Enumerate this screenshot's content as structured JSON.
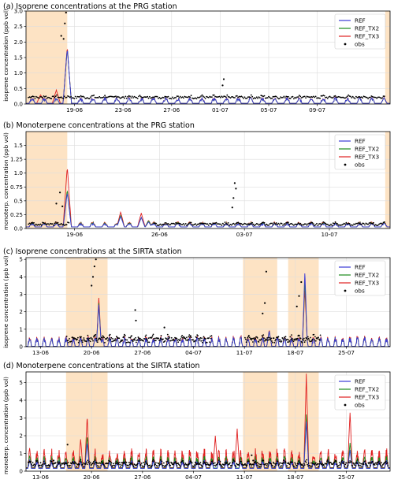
{
  "figure": {
    "legend_items": [
      "REF",
      "REF_TX2",
      "REF_TX3",
      "obs"
    ],
    "colors": {
      "REF": "#3b3bd6",
      "REF_TX2": "#1a8a1a",
      "REF_TX3": "#e02020",
      "obs": "#000000",
      "shade": "#fde3c4",
      "grid": "#dddddd"
    }
  },
  "chart_data": [
    {
      "type": "line",
      "title": "(a) Isoprene concentrations at the PRG station",
      "ylabel": "isoprene concentration (ppb vol)",
      "x_range_days": [
        0,
        30
      ],
      "ylim": [
        0,
        3.0
      ],
      "yticks": [
        0.0,
        0.5,
        1.0,
        1.5,
        2.0,
        2.5,
        3.0
      ],
      "xticks": [
        {
          "day": 4,
          "label": "19-06"
        },
        {
          "day": 8,
          "label": "23-06"
        },
        {
          "day": 12,
          "label": "27-06"
        },
        {
          "day": 16,
          "label": "01-07"
        },
        {
          "day": 20,
          "label": "05-07"
        },
        {
          "day": 24,
          "label": "09-07"
        }
      ],
      "shaded_periods": [
        [
          0,
          3.4
        ],
        [
          29.6,
          30
        ]
      ],
      "legend": "top-right",
      "series": [
        {
          "name": "REF",
          "baseline": 0.02,
          "amp": 0.14,
          "spikes": [
            [
              3.4,
              1.8
            ]
          ]
        },
        {
          "name": "REF_TX2",
          "baseline": 0.02,
          "amp": 0.14,
          "spikes": [
            [
              3.4,
              1.8
            ]
          ]
        },
        {
          "name": "REF_TX3",
          "baseline": 0.02,
          "amp": 0.15,
          "spikes": [
            [
              3.4,
              1.85
            ],
            [
              1.2,
              0.3
            ],
            [
              2.5,
              0.45
            ]
          ]
        }
      ],
      "obs": {
        "base": 0.2,
        "var": 0.08,
        "peaks": [
          [
            3.3,
            2.95
          ],
          [
            3.2,
            2.6
          ],
          [
            2.9,
            2.2
          ],
          [
            3.1,
            2.1
          ],
          [
            16.3,
            0.8
          ],
          [
            16.2,
            0.6
          ]
        ],
        "start": 0.2,
        "end": 29.6
      }
    },
    {
      "type": "line",
      "title": "(b) Monoterpene concentrations at the PRG station",
      "ylabel": "monoterp. concentration (ppb vol)",
      "x_range_days": [
        0,
        30
      ],
      "ylim": [
        0,
        1.75
      ],
      "yticks": [
        0.0,
        0.25,
        0.5,
        0.75,
        1.0,
        1.25,
        1.5
      ],
      "xticks": [
        {
          "day": 4,
          "label": "19-06"
        },
        {
          "day": 11,
          "label": "26-06"
        },
        {
          "day": 18,
          "label": "03-07"
        },
        {
          "day": 25,
          "label": "10-07"
        }
      ],
      "shaded_periods": [
        [
          0,
          3.4
        ],
        [
          29.6,
          30
        ]
      ],
      "legend": "top-right",
      "series": [
        {
          "name": "REF",
          "baseline": 0.03,
          "amp": 0.05,
          "spikes": [
            [
              3.4,
              0.65
            ],
            [
              7.8,
              0.22
            ],
            [
              9.5,
              0.2
            ],
            [
              10.1,
              0.12
            ]
          ]
        },
        {
          "name": "REF_TX2",
          "baseline": 0.03,
          "amp": 0.06,
          "spikes": [
            [
              3.4,
              0.7
            ],
            [
              7.8,
              0.24
            ],
            [
              9.5,
              0.2
            ],
            [
              10.1,
              0.14
            ]
          ]
        },
        {
          "name": "REF_TX3",
          "baseline": 0.03,
          "amp": 0.07,
          "spikes": [
            [
              3.4,
              1.12
            ],
            [
              7.8,
              0.3
            ],
            [
              9.5,
              0.28
            ],
            [
              10.1,
              0.15
            ]
          ]
        }
      ],
      "obs": {
        "base": 0.07,
        "var": 0.04,
        "peaks": [
          [
            2.8,
            0.65
          ],
          [
            2.5,
            0.45
          ],
          [
            3.0,
            0.4
          ],
          [
            17.2,
            0.82
          ],
          [
            17.3,
            0.72
          ],
          [
            17.1,
            0.55
          ],
          [
            17.0,
            0.38
          ]
        ],
        "start": 0.2,
        "end": 29.6,
        "gap": [
          3.6,
          10.5
        ]
      }
    },
    {
      "type": "line",
      "title": "(c) Isoprene concentrations at the SIRTA station",
      "ylabel": "isoprene concentration (ppb vol)",
      "x_range_days": [
        0,
        50
      ],
      "ylim": [
        0,
        5.1
      ],
      "yticks": [
        0,
        1,
        2,
        3,
        4,
        5
      ],
      "xticks": [
        {
          "day": 2,
          "label": "13-06"
        },
        {
          "day": 9,
          "label": "20-06"
        },
        {
          "day": 16,
          "label": "27-06"
        },
        {
          "day": 23,
          "label": "04-07"
        },
        {
          "day": 30,
          "label": "11-07"
        },
        {
          "day": 37,
          "label": "18-07"
        },
        {
          "day": 44,
          "label": "25-07"
        }
      ],
      "shaded_periods": [
        [
          5.5,
          11.2
        ],
        [
          29.8,
          34.5
        ],
        [
          36.0,
          40.2
        ]
      ],
      "legend": "top-right",
      "series": [
        {
          "name": "REF",
          "baseline": 0.02,
          "amp": 0.4,
          "spikes": [
            [
              10.0,
              2.4
            ],
            [
              38.3,
              4.3
            ],
            [
              33.4,
              0.9
            ]
          ]
        },
        {
          "name": "REF_TX2",
          "baseline": 0.02,
          "amp": 0.4,
          "spikes": [
            [
              10.0,
              2.5
            ],
            [
              38.3,
              3.8
            ],
            [
              33.4,
              0.9
            ]
          ]
        },
        {
          "name": "REF_TX3",
          "baseline": 0.02,
          "amp": 0.45,
          "spikes": [
            [
              10.0,
              2.8
            ],
            [
              38.3,
              3.3
            ],
            [
              33.4,
              0.95
            ]
          ]
        }
      ],
      "obs": {
        "base": 0.35,
        "var": 0.3,
        "peaks": [
          [
            9.6,
            5.0
          ],
          [
            9.4,
            4.6
          ],
          [
            9.2,
            4.0
          ],
          [
            9.0,
            3.5
          ],
          [
            15.0,
            2.1
          ],
          [
            15.1,
            1.5
          ],
          [
            19.0,
            1.1
          ],
          [
            33.0,
            4.3
          ],
          [
            32.8,
            2.5
          ],
          [
            32.5,
            1.9
          ],
          [
            37.8,
            3.7
          ],
          [
            37.5,
            2.9
          ],
          [
            37.2,
            2.3
          ]
        ],
        "start": 5.6,
        "end": 40.5,
        "gap": [
          25.5,
          30.0
        ]
      }
    },
    {
      "type": "line",
      "title": "(d) Monoterpene concentrations at the SIRTA station",
      "ylabel": "monoterp. concentration (ppb vol)",
      "x_range_days": [
        0,
        50
      ],
      "ylim": [
        0,
        5.6
      ],
      "yticks": [
        0,
        1,
        2,
        3,
        4,
        5
      ],
      "xticks": [
        {
          "day": 2,
          "label": "13-06"
        },
        {
          "day": 9,
          "label": "20-06"
        },
        {
          "day": 16,
          "label": "27-06"
        },
        {
          "day": 23,
          "label": "04-07"
        },
        {
          "day": 30,
          "label": "11-07"
        },
        {
          "day": 37,
          "label": "18-07"
        },
        {
          "day": 44,
          "label": "25-07"
        }
      ],
      "shaded_periods": [
        [
          5.5,
          11.2
        ],
        [
          29.8,
          34.5
        ],
        [
          36.0,
          40.2
        ]
      ],
      "legend": "top-right",
      "series": [
        {
          "name": "REF",
          "baseline": 0.15,
          "amp": 0.35,
          "spikes": [
            [
              38.5,
              2.8
            ],
            [
              8.4,
              1.6
            ],
            [
              44.5,
              1.2
            ]
          ]
        },
        {
          "name": "REF_TX2",
          "baseline": 0.18,
          "amp": 0.5,
          "spikes": [
            [
              38.5,
              3.2
            ],
            [
              8.4,
              2.0
            ],
            [
              44.5,
              1.6
            ]
          ]
        },
        {
          "name": "REF_TX3",
          "baseline": 0.2,
          "amp": 0.8,
          "spikes": [
            [
              38.5,
              5.5
            ],
            [
              8.4,
              3.1
            ],
            [
              44.5,
              3.3
            ],
            [
              7.5,
              1.8
            ],
            [
              26.0,
              2.0
            ],
            [
              29.0,
              2.4
            ]
          ]
        }
      ],
      "obs": {
        "base": 0.35,
        "var": 0.25,
        "peaks": [
          [
            3.8,
            0.6
          ],
          [
            5.7,
            1.5
          ],
          [
            31.0,
            0.9
          ],
          [
            31.2,
            0.6
          ]
        ],
        "start": 0.3,
        "end": 49.8
      }
    }
  ]
}
